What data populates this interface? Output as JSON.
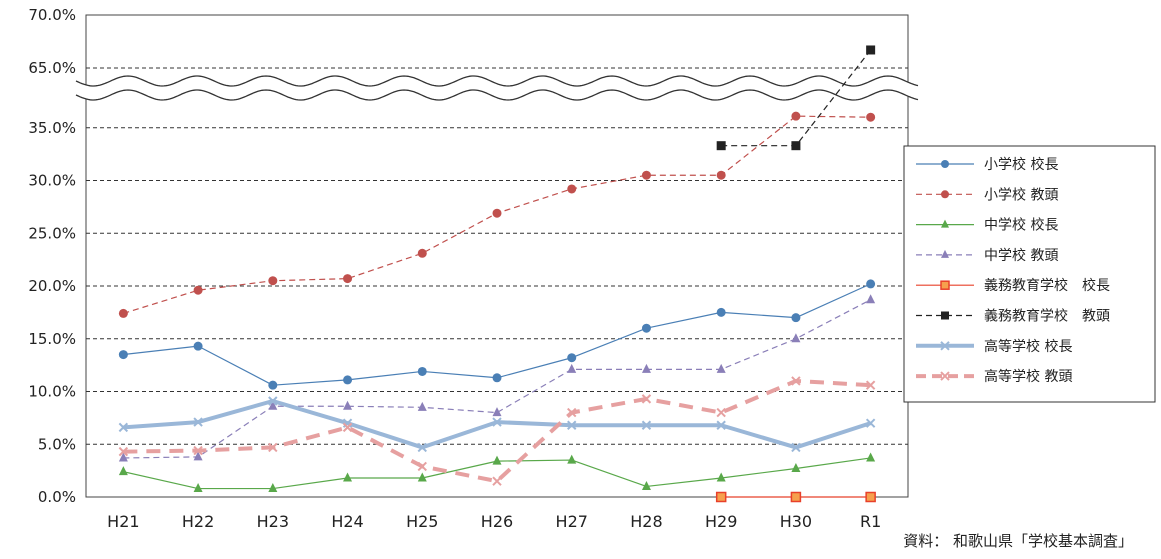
{
  "chart_data": {
    "type": "line",
    "categories": [
      "H21",
      "H22",
      "H23",
      "H24",
      "H25",
      "H26",
      "H27",
      "H28",
      "H29",
      "H30",
      "R1"
    ],
    "yticks": [
      "70.0%",
      "65.0%",
      "35.0%",
      "30.0%",
      "25.0%",
      "20.0%",
      "15.0%",
      "10.0%",
      "5.0%",
      "0.0%"
    ],
    "y_axis_break": [
      35,
      65
    ],
    "ylim": [
      0,
      70
    ],
    "grid": true,
    "legend_position": "right",
    "series": [
      {
        "name": "小学校 校長",
        "color": "#4a7fb5",
        "dash": "solid",
        "marker": "circle",
        "width": 1.2,
        "values": [
          13.5,
          14.3,
          10.6,
          11.1,
          11.9,
          11.3,
          13.2,
          16.0,
          17.5,
          17.0,
          20.2
        ]
      },
      {
        "name": "小学校 教頭",
        "color": "#c0504d",
        "dash": "dashed",
        "marker": "circle",
        "width": 1.2,
        "values": [
          17.4,
          19.6,
          20.5,
          20.7,
          23.1,
          26.9,
          29.2,
          30.5,
          30.5,
          36.1,
          36.0
        ]
      },
      {
        "name": "中学校 校長",
        "color": "#59a84a",
        "dash": "solid",
        "marker": "triangle",
        "width": 1.2,
        "values": [
          2.4,
          0.8,
          0.8,
          1.8,
          1.8,
          3.4,
          3.5,
          1.0,
          1.8,
          2.7,
          3.7
        ]
      },
      {
        "name": "中学校 教頭",
        "color": "#8a7fb8",
        "dash": "dashed",
        "marker": "triangle",
        "width": 1.2,
        "values": [
          3.7,
          3.8,
          8.6,
          8.6,
          8.5,
          8.0,
          12.1,
          12.1,
          12.1,
          15.0,
          18.7
        ]
      },
      {
        "name": "義務教育学校　校長",
        "color": "#e8402a",
        "dash": "solid",
        "marker": "square-open",
        "width": 1.2,
        "values": [
          null,
          null,
          null,
          null,
          null,
          null,
          null,
          null,
          0.0,
          0.0,
          0.0
        ]
      },
      {
        "name": "義務教育学校　教頭",
        "color": "#222222",
        "dash": "dashed",
        "marker": "square",
        "width": 1.2,
        "values": [
          null,
          null,
          null,
          null,
          null,
          null,
          null,
          null,
          33.3,
          33.3,
          66.7
        ]
      },
      {
        "name": "高等学校 校長",
        "color": "#9ab7d8",
        "dash": "solid",
        "marker": "x",
        "width": 4,
        "values": [
          6.6,
          7.1,
          9.1,
          7.0,
          4.7,
          7.1,
          6.8,
          6.8,
          6.8,
          4.7,
          7.0
        ]
      },
      {
        "name": "高等学校 教頭",
        "color": "#e6a0a0",
        "dash": "dashed-thick",
        "marker": "x",
        "width": 4,
        "values": [
          4.3,
          4.4,
          4.7,
          6.6,
          2.9,
          1.5,
          8.0,
          9.3,
          8.0,
          11.0,
          10.6
        ]
      }
    ]
  },
  "source_note": "資料：  和歌山県「学校基本調査」"
}
